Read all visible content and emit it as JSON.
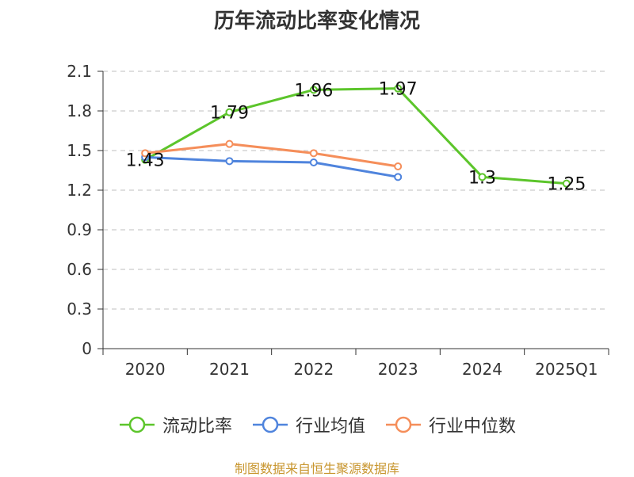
{
  "chart_data": {
    "type": "line",
    "title": "历年流动比率变化情况",
    "categories": [
      "2020",
      "2021",
      "2022",
      "2023",
      "2024",
      "2025Q1"
    ],
    "ylim": [
      0,
      2.1
    ],
    "yticks": [
      "0",
      "0.3",
      "0.6",
      "0.9",
      "1.2",
      "1.5",
      "1.8",
      "2.1"
    ],
    "grid": true,
    "legend_position": "bottom",
    "series": [
      {
        "name": "流动比率",
        "color": "#5cc52b",
        "values": [
          1.43,
          1.79,
          1.96,
          1.97,
          1.3,
          1.25
        ],
        "labels": [
          "1.43",
          "1.79",
          "1.96",
          "1.97",
          "1.3",
          "1.25"
        ]
      },
      {
        "name": "行业均值",
        "color": "#4f84dd",
        "values": [
          1.45,
          1.42,
          1.41,
          1.3,
          null,
          null
        ]
      },
      {
        "name": "行业中位数",
        "color": "#f58e5a",
        "values": [
          1.48,
          1.55,
          1.48,
          1.38,
          null,
          null
        ]
      }
    ],
    "source": "制图数据来自恒生聚源数据库"
  }
}
